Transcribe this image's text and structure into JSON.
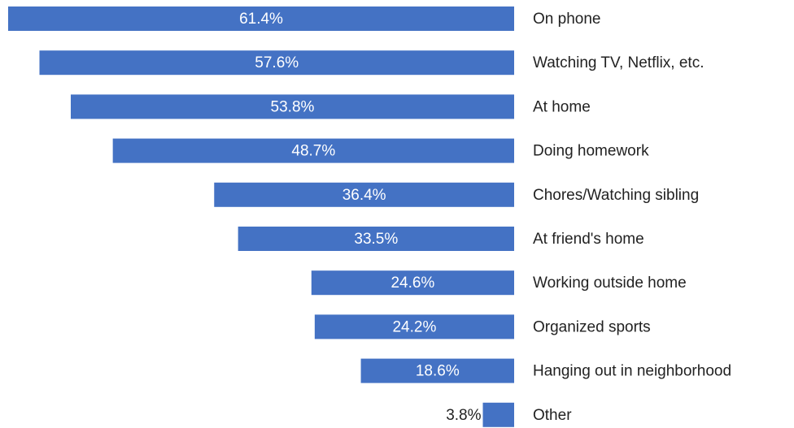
{
  "chart_data": {
    "type": "bar",
    "orientation": "horizontal",
    "direction": "leftward",
    "categories": [
      "On phone",
      "Watching TV, Netflix, etc.",
      "At home",
      "Doing homework",
      "Chores/Watching sibling",
      "At friend's home",
      "Working outside home",
      "Organized sports",
      "Hanging out in neighborhood",
      "Other"
    ],
    "values": [
      61.4,
      57.6,
      53.8,
      48.7,
      36.4,
      33.5,
      24.6,
      24.2,
      18.6,
      3.8
    ],
    "value_labels": [
      "61.4%",
      "57.6%",
      "53.8%",
      "48.7%",
      "36.4%",
      "33.5%",
      "24.6%",
      "24.2%",
      "18.6%",
      "3.8%"
    ],
    "color": "#4472c4"
  }
}
